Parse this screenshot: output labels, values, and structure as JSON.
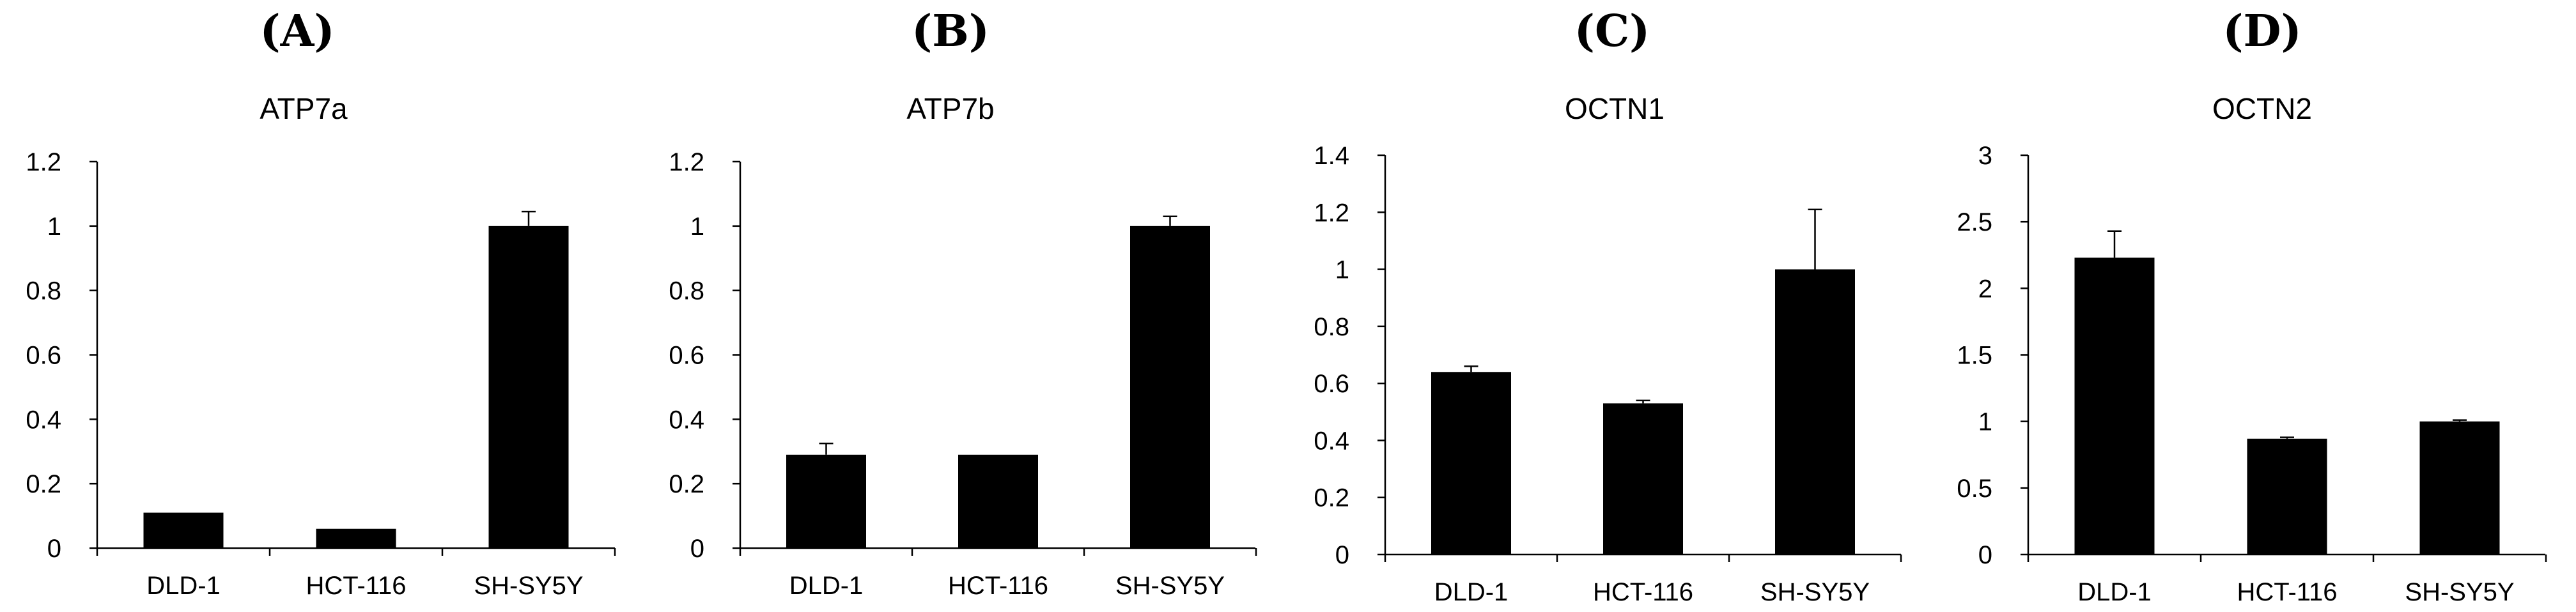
{
  "figure": {
    "bar_color": "#000000",
    "axis_color": "#000000"
  },
  "chart_data": [
    {
      "type": "bar",
      "panel_label": "(A)",
      "title": "ATP7a",
      "categories": [
        "DLD-1",
        "HCT-116",
        "SH-SY5Y"
      ],
      "values": [
        0.11,
        0.06,
        1.0
      ],
      "errors": [
        0,
        0,
        0.045
      ],
      "ylim": [
        0,
        1.2
      ],
      "yticks": [
        0,
        0.2,
        0.4,
        0.6,
        0.8,
        1,
        1.2
      ],
      "ytick_labels": [
        "0",
        "0.2",
        "0.4",
        "0.6",
        "0.8",
        "1",
        "1.2"
      ],
      "xlabel": "",
      "ylabel": ""
    },
    {
      "type": "bar",
      "panel_label": "(B)",
      "title": "ATP7b",
      "categories": [
        "DLD-1",
        "HCT-116",
        "SH-SY5Y"
      ],
      "values": [
        0.29,
        0.29,
        1.0
      ],
      "errors": [
        0.035,
        0,
        0.03
      ],
      "ylim": [
        0,
        1.2
      ],
      "yticks": [
        0,
        0.2,
        0.4,
        0.6,
        0.8,
        1,
        1.2
      ],
      "ytick_labels": [
        "0",
        "0.2",
        "0.4",
        "0.6",
        "0.8",
        "1",
        "1.2"
      ],
      "xlabel": "",
      "ylabel": ""
    },
    {
      "type": "bar",
      "panel_label": "(C)",
      "title": "OCTN1",
      "categories": [
        "DLD-1",
        "HCT-116",
        "SH-SY5Y"
      ],
      "values": [
        0.64,
        0.53,
        1.0
      ],
      "errors": [
        0.02,
        0.01,
        0.21
      ],
      "ylim": [
        0,
        1.4
      ],
      "yticks": [
        0,
        0.2,
        0.4,
        0.6,
        0.8,
        1,
        1.2,
        1.4
      ],
      "ytick_labels": [
        "0",
        "0.2",
        "0.4",
        "0.6",
        "0.8",
        "1",
        "1.2",
        "1.4"
      ],
      "xlabel": "",
      "ylabel": ""
    },
    {
      "type": "bar",
      "panel_label": "(D)",
      "title": "OCTN2",
      "categories": [
        "DLD-1",
        "HCT-116",
        "SH-SY5Y"
      ],
      "values": [
        2.23,
        0.87,
        1.0
      ],
      "errors": [
        0.2,
        0.01,
        0.01
      ],
      "ylim": [
        0,
        3
      ],
      "yticks": [
        0,
        0.5,
        1,
        1.5,
        2,
        2.5,
        3
      ],
      "ytick_labels": [
        "0",
        "0.5",
        "1",
        "1.5",
        "2",
        "2.5",
        "3"
      ],
      "xlabel": "",
      "ylabel": ""
    }
  ]
}
